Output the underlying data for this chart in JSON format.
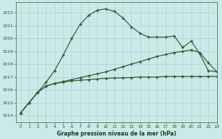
{
  "title": "Graphe pression niveau de la mer (hPa)",
  "bg_color": "#cce9e9",
  "grid_color": "#b0d8d8",
  "line_color": "#2d5a2d",
  "xlim": [
    -0.5,
    23
  ],
  "ylim": [
    1013.5,
    1022.8
  ],
  "yticks": [
    1014,
    1015,
    1016,
    1017,
    1018,
    1019,
    1020,
    1021,
    1022
  ],
  "xticks": [
    0,
    1,
    2,
    3,
    4,
    5,
    6,
    7,
    8,
    9,
    10,
    11,
    12,
    13,
    14,
    15,
    16,
    17,
    18,
    19,
    20,
    21,
    22,
    23
  ],
  "series1_y": [
    1014.2,
    1015.0,
    1015.8,
    1016.6,
    1017.5,
    1018.7,
    1020.0,
    1021.1,
    1021.8,
    1022.2,
    1022.3,
    1022.1,
    1021.6,
    1020.9,
    1020.4,
    1020.1,
    1020.1,
    1020.1,
    1020.2,
    1019.3,
    1019.8,
    1018.8,
    1017.5,
    1017.4
  ],
  "series2_y": [
    1014.2,
    1015.0,
    1015.8,
    1016.3,
    1016.5,
    1016.6,
    1016.7,
    1016.75,
    1016.8,
    1016.85,
    1016.9,
    1016.92,
    1016.94,
    1016.96,
    1017.0,
    1017.0,
    1017.0,
    1017.05,
    1017.05,
    1017.05,
    1017.05,
    1017.05,
    1017.05,
    1017.05
  ],
  "series3_y": [
    1014.2,
    1015.0,
    1015.8,
    1016.3,
    1016.5,
    1016.65,
    1016.8,
    1016.95,
    1017.1,
    1017.25,
    1017.4,
    1017.6,
    1017.8,
    1018.0,
    1018.2,
    1018.4,
    1018.6,
    1018.75,
    1018.9,
    1019.0,
    1019.1,
    1018.9,
    1018.1,
    1017.4
  ]
}
